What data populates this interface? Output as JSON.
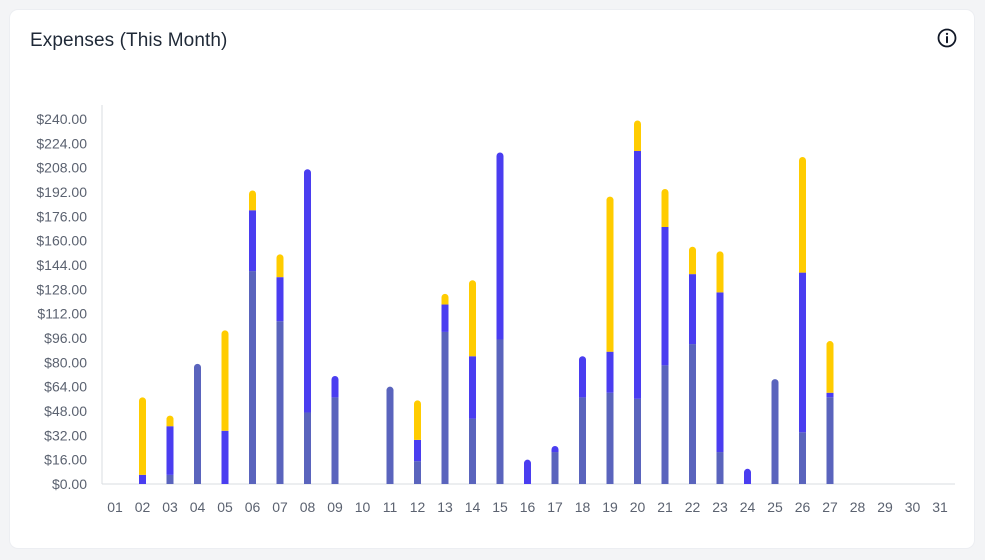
{
  "card": {
    "title": "Expenses (This Month)",
    "info_icon": "info-circle-icon"
  },
  "colors": {
    "series_a": "#5a64bd",
    "series_b": "#4a3df0",
    "series_c": "#ffcc00",
    "axis": "#d9dce1",
    "tick_text": "#5b6270"
  },
  "chart_data": {
    "type": "bar",
    "stacked": true,
    "title": "Expenses (This Month)",
    "xlabel": "",
    "ylabel": "",
    "ylim": [
      0,
      240
    ],
    "y_ticks": [
      "$0.00",
      "$16.00",
      "$32.00",
      "$48.00",
      "$64.00",
      "$80.00",
      "$96.00",
      "$112.00",
      "$128.00",
      "$144.00",
      "$160.00",
      "$176.00",
      "$192.00",
      "$208.00",
      "$224.00",
      "$240.00"
    ],
    "grid": false,
    "legend": "none",
    "categories": [
      "01",
      "02",
      "03",
      "04",
      "05",
      "06",
      "07",
      "08",
      "09",
      "10",
      "11",
      "12",
      "13",
      "14",
      "15",
      "16",
      "17",
      "18",
      "19",
      "20",
      "21",
      "22",
      "23",
      "24",
      "25",
      "26",
      "27",
      "28",
      "29",
      "30",
      "31"
    ],
    "series": [
      {
        "values": [
          0,
          0,
          6,
          79,
          0,
          140,
          107,
          47,
          57,
          0,
          64,
          15,
          100,
          43,
          95,
          0,
          21,
          57,
          60,
          56,
          78,
          92,
          21,
          0,
          69,
          34,
          57,
          0,
          0,
          0,
          0
        ]
      },
      {
        "values": [
          0,
          6,
          32,
          0,
          35,
          40,
          29,
          160,
          14,
          0,
          0,
          14,
          18,
          41,
          123,
          16,
          4,
          27,
          27,
          163,
          91,
          46,
          105,
          10,
          0,
          105,
          3,
          0,
          0,
          0,
          0
        ]
      },
      {
        "values": [
          0,
          51,
          7,
          0,
          66,
          13,
          15,
          0,
          0,
          0,
          0,
          26,
          7,
          50,
          0,
          0,
          0,
          0,
          102,
          20,
          25,
          18,
          27,
          0,
          0,
          76,
          34,
          0,
          0,
          0,
          0
        ]
      }
    ]
  }
}
